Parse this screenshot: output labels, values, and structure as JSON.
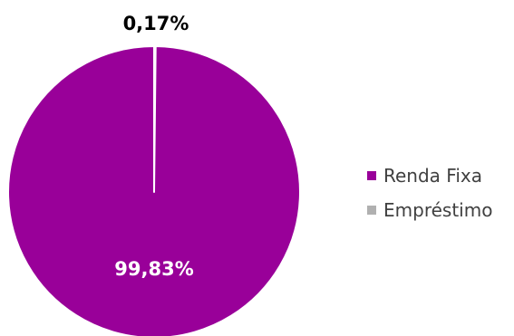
{
  "chart_data": {
    "type": "pie",
    "title": "",
    "categories": [
      "Renda Fixa",
      "Empréstimo"
    ],
    "values": [
      99.83,
      0.17
    ],
    "labels": [
      "99,83%",
      "0,17%"
    ],
    "colors": [
      "#990099",
      "#B0B0B0"
    ],
    "legend_position": "right"
  },
  "legend": {
    "items": [
      {
        "label": "Renda Fixa",
        "color": "#990099"
      },
      {
        "label": "Empréstimo",
        "color": "#B0B0B0"
      }
    ]
  }
}
